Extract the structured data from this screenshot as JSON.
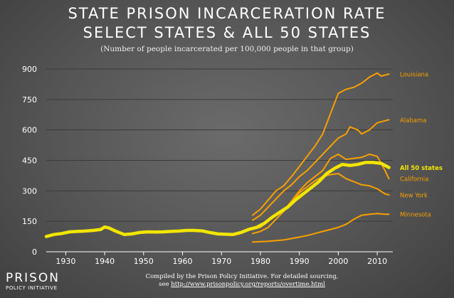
{
  "title_line1": "STATE PRISON INCARCERATION RATE",
  "title_line2": "SELECT STATES & ALL 50 STATES",
  "subtitle": "(Number of people incarcerated per 100,000 people in that group)",
  "logo": {
    "line1": "PRISON",
    "line2": "POLICY INITIATIVE"
  },
  "credit": {
    "line1": "Compiled by the Prison Policy Initiative. For detailed sourcing,",
    "line2_prefix": "see ",
    "url": "http://www.prisonpolicy.org/reports/overtime.html"
  },
  "colors": {
    "all_states": "#f2e600",
    "states": "#f7a000",
    "background": "#555555"
  },
  "chart_data": {
    "type": "line",
    "xlim": [
      1925,
      2014
    ],
    "ylim": [
      0,
      900
    ],
    "x_ticks": [
      1930,
      1940,
      1950,
      1960,
      1970,
      1980,
      1990,
      2000,
      2010
    ],
    "y_ticks": [
      0,
      150,
      300,
      450,
      600,
      750,
      900
    ],
    "y_tick_labels": [
      "0",
      "150",
      "300",
      "450",
      "600",
      "750",
      "900"
    ],
    "grid": true,
    "series": [
      {
        "name": "All 50 states",
        "highlight": true,
        "x": [
          1925,
          1927,
          1929,
          1931,
          1933,
          1935,
          1937,
          1939,
          1940,
          1941,
          1943,
          1945,
          1947,
          1949,
          1951,
          1953,
          1955,
          1957,
          1959,
          1961,
          1963,
          1965,
          1967,
          1969,
          1971,
          1973,
          1975,
          1977,
          1979,
          1981,
          1983,
          1985,
          1987,
          1989,
          1991,
          1993,
          1995,
          1997,
          1999,
          2001,
          2003,
          2005,
          2007,
          2009,
          2011,
          2013
        ],
        "y": [
          75,
          85,
          90,
          98,
          100,
          102,
          105,
          110,
          122,
          118,
          100,
          85,
          88,
          95,
          98,
          97,
          98,
          100,
          102,
          105,
          105,
          103,
          95,
          88,
          86,
          85,
          95,
          110,
          120,
          140,
          170,
          195,
          220,
          255,
          285,
          315,
          345,
          385,
          410,
          430,
          425,
          430,
          440,
          440,
          435,
          415
        ]
      },
      {
        "name": "Louisiana",
        "x": [
          1978,
          1980,
          1982,
          1984,
          1986,
          1988,
          1990,
          1992,
          1994,
          1996,
          1998,
          2000,
          2002,
          2004,
          2006,
          2008,
          2010,
          2011,
          2013
        ],
        "y": [
          180,
          210,
          255,
          300,
          325,
          370,
          420,
          470,
          520,
          580,
          680,
          780,
          800,
          810,
          830,
          860,
          880,
          865,
          875
        ]
      },
      {
        "name": "Alabama",
        "x": [
          1978,
          1980,
          1982,
          1984,
          1986,
          1988,
          1990,
          1992,
          1994,
          1996,
          1998,
          2000,
          2002,
          2003,
          2005,
          2006,
          2008,
          2010,
          2012,
          2013
        ],
        "y": [
          155,
          180,
          220,
          260,
          300,
          330,
          370,
          400,
          440,
          480,
          520,
          560,
          580,
          615,
          600,
          580,
          600,
          635,
          645,
          650
        ]
      },
      {
        "name": "California",
        "x": [
          1978,
          1980,
          1982,
          1984,
          1986,
          1988,
          1990,
          1992,
          1994,
          1996,
          1998,
          2000,
          2002,
          2004,
          2006,
          2008,
          2010,
          2012,
          2013
        ],
        "y": [
          90,
          100,
          120,
          160,
          200,
          250,
          300,
          340,
          370,
          400,
          460,
          480,
          455,
          460,
          465,
          480,
          470,
          400,
          360
        ]
      },
      {
        "name": "New York",
        "x": [
          1978,
          1980,
          1982,
          1984,
          1986,
          1988,
          1990,
          1992,
          1994,
          1996,
          1998,
          2000,
          2002,
          2004,
          2006,
          2008,
          2010,
          2012,
          2013
        ],
        "y": [
          110,
          120,
          150,
          180,
          200,
          240,
          290,
          320,
          350,
          370,
          380,
          385,
          360,
          345,
          330,
          325,
          310,
          285,
          280
        ]
      },
      {
        "name": "Minnesota",
        "x": [
          1978,
          1980,
          1982,
          1984,
          1986,
          1988,
          1990,
          1992,
          1994,
          1996,
          1998,
          2000,
          2002,
          2004,
          2006,
          2008,
          2010,
          2012,
          2013
        ],
        "y": [
          48,
          50,
          52,
          55,
          58,
          65,
          72,
          80,
          90,
          100,
          110,
          120,
          135,
          160,
          180,
          185,
          188,
          185,
          185
        ]
      }
    ]
  }
}
